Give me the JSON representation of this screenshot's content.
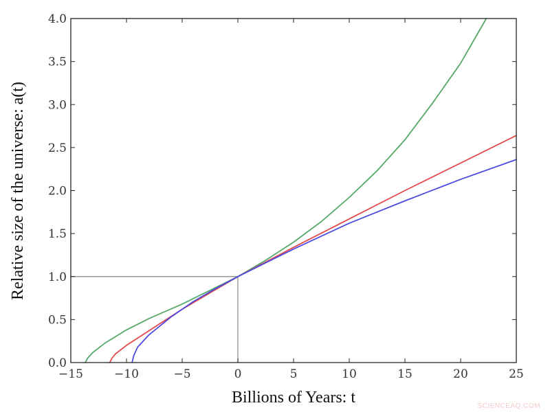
{
  "chart_data": {
    "type": "line",
    "xlabel": "Billions of Years: t",
    "ylabel": "Relative size of the universe: a(t)",
    "xlim": [
      -15,
      25
    ],
    "ylim": [
      0.0,
      4.0
    ],
    "x_ticks": [
      "−15",
      "−10",
      "−5",
      "0",
      "5",
      "10",
      "15",
      "20",
      "25"
    ],
    "x_tick_values": [
      -15,
      -10,
      -5,
      0,
      5,
      10,
      15,
      20,
      25
    ],
    "y_ticks": [
      "0.0",
      "0.5",
      "1.0",
      "1.5",
      "2.0",
      "2.5",
      "3.0",
      "3.5",
      "4.0"
    ],
    "y_tick_values": [
      0.0,
      0.5,
      1.0,
      1.5,
      2.0,
      2.5,
      3.0,
      3.5,
      4.0
    ],
    "grid": false,
    "reference_lines": [
      {
        "from": [
          -15,
          1.0
        ],
        "to": [
          0,
          1.0
        ],
        "color": "#999999"
      },
      {
        "from": [
          0,
          0.0
        ],
        "to": [
          0,
          1.0
        ],
        "color": "#999999"
      }
    ],
    "series": [
      {
        "color": "#55a868",
        "points": [
          [
            -13.7,
            0.0
          ],
          [
            -13.5,
            0.05
          ],
          [
            -13.0,
            0.12
          ],
          [
            -12.0,
            0.22
          ],
          [
            -10.0,
            0.38
          ],
          [
            -8.0,
            0.51
          ],
          [
            -5.0,
            0.68
          ],
          [
            -2.5,
            0.84
          ],
          [
            0.0,
            1.0
          ],
          [
            2.5,
            1.19
          ],
          [
            5.0,
            1.4
          ],
          [
            7.5,
            1.64
          ],
          [
            10.0,
            1.92
          ],
          [
            12.5,
            2.23
          ],
          [
            15.0,
            2.59
          ],
          [
            17.5,
            3.02
          ],
          [
            20.0,
            3.48
          ],
          [
            22.3,
            4.0
          ]
        ]
      },
      {
        "color": "#e24a4a",
        "points": [
          [
            -11.5,
            0.0
          ],
          [
            -11.3,
            0.05
          ],
          [
            -11.0,
            0.1
          ],
          [
            -10.0,
            0.2
          ],
          [
            -7.5,
            0.41
          ],
          [
            -5.0,
            0.62
          ],
          [
            -2.5,
            0.81
          ],
          [
            0.0,
            1.0
          ],
          [
            2.5,
            1.17
          ],
          [
            5.0,
            1.34
          ],
          [
            10.0,
            1.67
          ],
          [
            15.0,
            2.0
          ],
          [
            20.0,
            2.32
          ],
          [
            25.0,
            2.64
          ]
        ]
      },
      {
        "color": "#4c4ce0",
        "points": [
          [
            -9.5,
            0.0
          ],
          [
            -9.35,
            0.08
          ],
          [
            -9.0,
            0.18
          ],
          [
            -8.0,
            0.32
          ],
          [
            -6.0,
            0.53
          ],
          [
            -4.0,
            0.71
          ],
          [
            -2.0,
            0.86
          ],
          [
            0.0,
            1.0
          ],
          [
            2.5,
            1.16
          ],
          [
            5.0,
            1.32
          ],
          [
            10.0,
            1.62
          ],
          [
            15.0,
            1.88
          ],
          [
            20.0,
            2.13
          ],
          [
            25.0,
            2.36
          ]
        ]
      }
    ]
  },
  "watermark": "SCIENCEAQ.COM"
}
